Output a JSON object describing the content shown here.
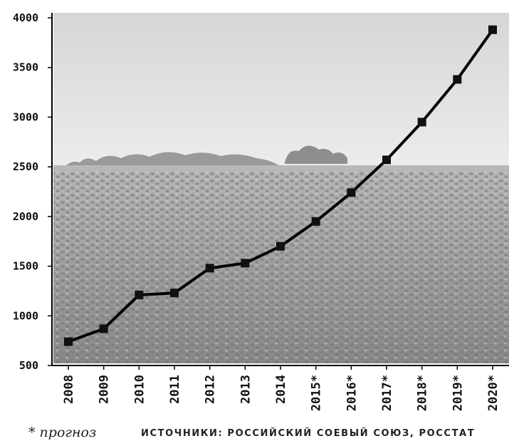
{
  "chart_data": {
    "type": "line",
    "x": [
      "2008",
      "2009",
      "2010",
      "2011",
      "2012",
      "2013",
      "2014",
      "2015*",
      "2016*",
      "2017*",
      "2018*",
      "2019*",
      "2020*"
    ],
    "series": [
      {
        "values": [
          740,
          870,
          1210,
          1230,
          1480,
          1530,
          1700,
          1950,
          2240,
          2570,
          2950,
          3380,
          3880
        ]
      }
    ],
    "yticks": [
      500,
      1000,
      1500,
      2000,
      2500,
      3000,
      3500,
      4000
    ],
    "ylim": [
      500,
      4000
    ],
    "grid": false,
    "line_color": "#000000",
    "marker": "square"
  },
  "footnote": "* прогноз",
  "sources": "ИСТОЧНИКИ: РОССИЙСКИЙ СОЕВЫЙ СОЮЗ, РОССТАТ"
}
